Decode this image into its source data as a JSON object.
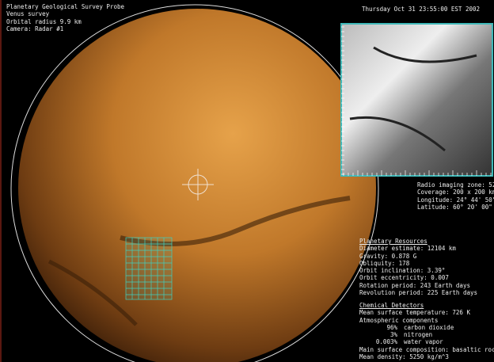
{
  "header": {
    "lines": [
      "Planetary Geological Survey Probe",
      "Venus survey",
      "Orbital radius 9.9 km",
      "Camera: Radar #1"
    ]
  },
  "timestamp": "Thursday Oct 31 23:55:00 EST 2002",
  "imaging": {
    "lines": [
      "Radio imaging zone: 52",
      "Coverage: 200 x 200 km",
      "Longitude: 24° 44' 50\"",
      "Latitude: 60° 20' 00\""
    ]
  },
  "resources": {
    "heading": "Planetary Resources",
    "lines": [
      "Diameter estimate: 12104 km",
      "Gravity: 0.878 G",
      "Obliquity: 178",
      "Orbit inclination: 3.39°",
      "Orbit eccentricity: 0.007",
      "Rotation period: 243 Earth days",
      "Revolution period: 225 Earth days"
    ]
  },
  "chemical": {
    "heading": "Chemical Detectors",
    "lines_before": [
      "Mean surface temperature: 726 K",
      "Atmospheric components"
    ],
    "components": [
      {
        "percent": "96%",
        "name": "carbon dioxide"
      },
      {
        "percent": "3%",
        "name": "nitrogen"
      },
      {
        "percent": "0.003%",
        "name": "water vapor"
      }
    ],
    "lines_after": [
      "Main surface composition: basaltic rock",
      "Mean density: 5250 kg/m^3"
    ]
  }
}
